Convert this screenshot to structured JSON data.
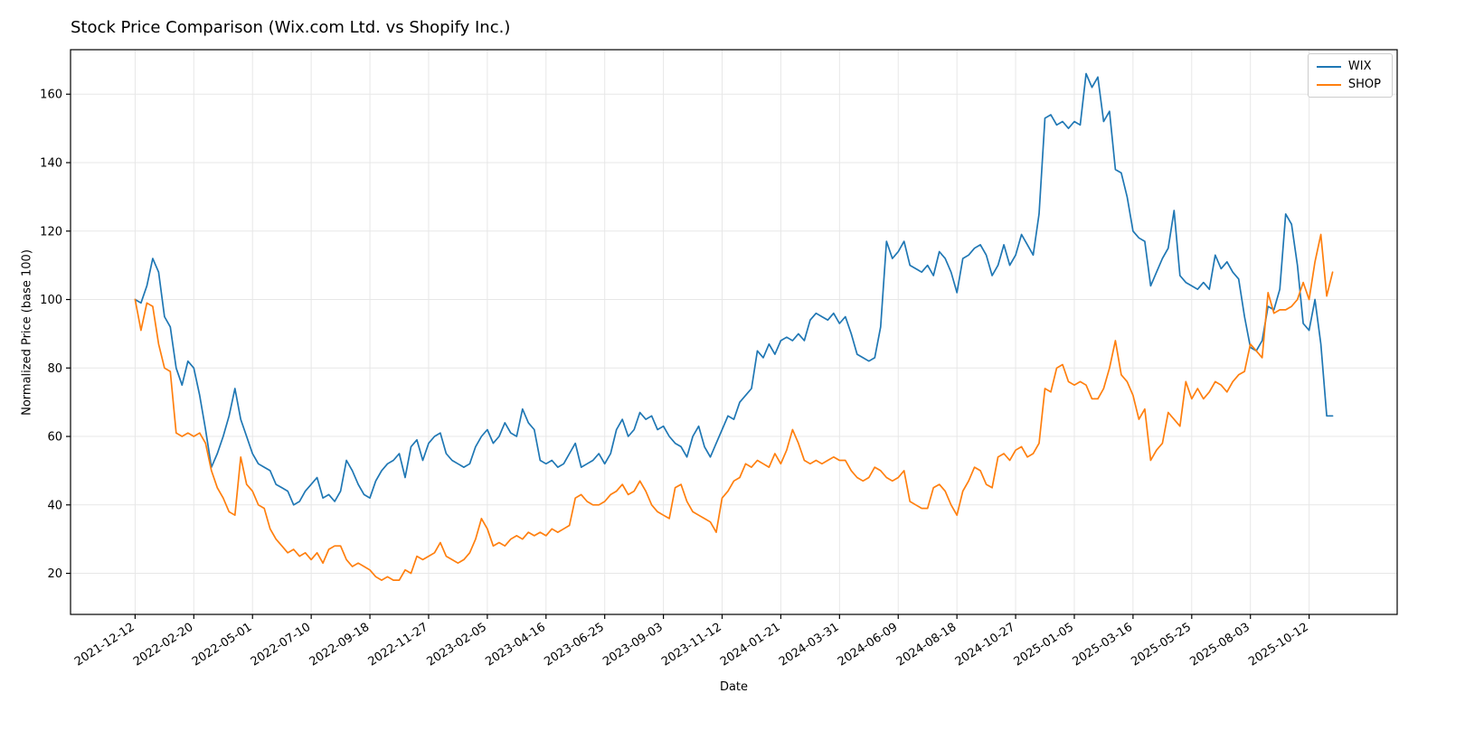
{
  "title": "Stock Price Comparison (Wix.com Ltd. vs Shopify Inc.)",
  "axes": {
    "xlabel": "Date",
    "ylabel": "Normalized Price (base 100)"
  },
  "chart_data": {
    "type": "line",
    "title": "Stock Price Comparison (Wix.com Ltd. vs Shopify Inc.)",
    "xlabel": "Date",
    "ylabel": "Normalized Price (base 100)",
    "grid": true,
    "legend_position": "upper right",
    "x_unit": "weeks since 2021-12-12",
    "x_tick_labels": [
      "2021-12-12",
      "2022-02-20",
      "2022-05-01",
      "2022-07-10",
      "2022-09-18",
      "2022-11-27",
      "2023-02-05",
      "2023-04-16",
      "2023-06-25",
      "2023-09-03",
      "2023-11-12",
      "2024-01-21",
      "2024-03-31",
      "2024-06-09",
      "2024-08-18",
      "2024-10-27",
      "2025-01-05",
      "2025-03-16",
      "2025-05-25",
      "2025-08-03",
      "2025-10-12"
    ],
    "x_tick_positions_weeks": [
      0,
      10,
      20,
      30,
      40,
      50,
      60,
      70,
      80,
      90,
      100,
      110,
      120,
      130,
      140,
      150,
      160,
      170,
      180,
      190,
      200
    ],
    "y_ticks": [
      20,
      40,
      60,
      80,
      100,
      120,
      140,
      160
    ],
    "ylim": [
      8,
      173
    ],
    "xlim_weeks": [
      -11,
      215
    ],
    "series": [
      {
        "name": "WIX",
        "color": "#1f77b4",
        "values": [
          100,
          99,
          104,
          112,
          108,
          95,
          92,
          80,
          75,
          82,
          80,
          72,
          62,
          51,
          55,
          60,
          66,
          74,
          65,
          60,
          55,
          52,
          51,
          50,
          46,
          45,
          44,
          40,
          41,
          44,
          46,
          48,
          42,
          43,
          41,
          44,
          53,
          50,
          46,
          43,
          42,
          47,
          50,
          52,
          53,
          55,
          48,
          57,
          59,
          53,
          58,
          60,
          61,
          55,
          53,
          52,
          51,
          52,
          57,
          60,
          62,
          58,
          60,
          64,
          61,
          60,
          68,
          64,
          62,
          53,
          52,
          53,
          51,
          52,
          55,
          58,
          51,
          52,
          53,
          55,
          52,
          55,
          62,
          65,
          60,
          62,
          67,
          65,
          66,
          62,
          63,
          60,
          58,
          57,
          54,
          60,
          63,
          57,
          54,
          58,
          62,
          66,
          65,
          70,
          72,
          74,
          85,
          83,
          87,
          84,
          88,
          89,
          88,
          90,
          88,
          94,
          96,
          95,
          94,
          96,
          93,
          95,
          90,
          84,
          83,
          82,
          83,
          92,
          117,
          112,
          114,
          117,
          110,
          109,
          108,
          110,
          107,
          114,
          112,
          108,
          102,
          112,
          113,
          115,
          116,
          113,
          107,
          110,
          116,
          110,
          113,
          119,
          116,
          113,
          125,
          153,
          154,
          151,
          152,
          150,
          152,
          151,
          166,
          162,
          165,
          152,
          155,
          138,
          137,
          130,
          120,
          118,
          117,
          104,
          108,
          112,
          115,
          126,
          107,
          105,
          104,
          103,
          105,
          103,
          113,
          109,
          111,
          108,
          106,
          95,
          86,
          85,
          88,
          98,
          97,
          103,
          125,
          122,
          110,
          93,
          91,
          100,
          87,
          66,
          66
        ]
      },
      {
        "name": "SHOP",
        "color": "#ff7f0e",
        "values": [
          100,
          91,
          99,
          98,
          87,
          80,
          79,
          61,
          60,
          61,
          60,
          61,
          58,
          50,
          45,
          42,
          38,
          37,
          54,
          46,
          44,
          40,
          39,
          33,
          30,
          28,
          26,
          27,
          25,
          26,
          24,
          26,
          23,
          27,
          28,
          28,
          24,
          22,
          23,
          22,
          21,
          19,
          18,
          19,
          18,
          18,
          21,
          20,
          25,
          24,
          25,
          26,
          29,
          25,
          24,
          23,
          24,
          26,
          30,
          36,
          33,
          28,
          29,
          28,
          30,
          31,
          30,
          32,
          31,
          32,
          31,
          33,
          32,
          33,
          34,
          42,
          43,
          41,
          40,
          40,
          41,
          43,
          44,
          46,
          43,
          44,
          47,
          44,
          40,
          38,
          37,
          36,
          45,
          46,
          41,
          38,
          37,
          36,
          35,
          32,
          42,
          44,
          47,
          48,
          52,
          51,
          53,
          52,
          51,
          55,
          52,
          56,
          62,
          58,
          53,
          52,
          53,
          52,
          53,
          54,
          53,
          53,
          50,
          48,
          47,
          48,
          51,
          50,
          48,
          47,
          48,
          50,
          41,
          40,
          39,
          39,
          45,
          46,
          44,
          40,
          37,
          44,
          47,
          51,
          50,
          46,
          45,
          54,
          55,
          53,
          56,
          57,
          54,
          55,
          58,
          74,
          73,
          80,
          81,
          76,
          75,
          76,
          75,
          71,
          71,
          74,
          80,
          88,
          78,
          76,
          72,
          65,
          68,
          53,
          56,
          58,
          67,
          65,
          63,
          76,
          71,
          74,
          71,
          73,
          76,
          75,
          73,
          76,
          78,
          79,
          87,
          85,
          83,
          102,
          96,
          97,
          97,
          98,
          100,
          105,
          100,
          111,
          119,
          101,
          108
        ]
      }
    ]
  },
  "legend": {
    "items": [
      {
        "label": "WIX",
        "color": "#1f77b4"
      },
      {
        "label": "SHOP",
        "color": "#ff7f0e"
      }
    ]
  }
}
